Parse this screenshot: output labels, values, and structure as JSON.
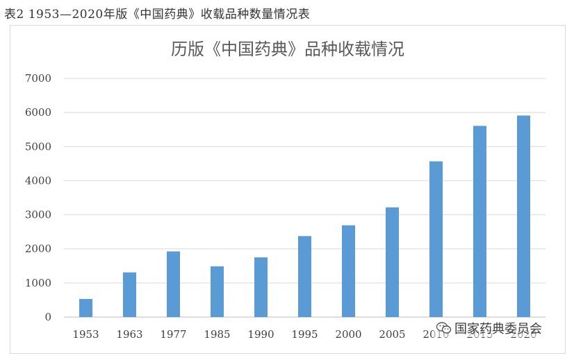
{
  "caption": "表2   1953—2020年版《中国药典》收载品种数量情况表",
  "chart_data": {
    "type": "bar",
    "title": "历版《中国药典》品种收载情况",
    "categories": [
      "1953",
      "1963",
      "1977",
      "1985",
      "1990",
      "1995",
      "2000",
      "2005",
      "2010",
      "2015",
      "2020"
    ],
    "values": [
      531,
      1310,
      1925,
      1489,
      1751,
      2375,
      2691,
      3217,
      4567,
      5608,
      5911
    ],
    "yticks": [
      0,
      1000,
      2000,
      3000,
      4000,
      5000,
      6000,
      7000
    ],
    "ylim": [
      0,
      7000
    ],
    "grid": true,
    "legend": "none",
    "bar_color": "#5b9bd5"
  },
  "watermark": {
    "icon": "wechat-icon",
    "text": "国家药典委员会"
  }
}
